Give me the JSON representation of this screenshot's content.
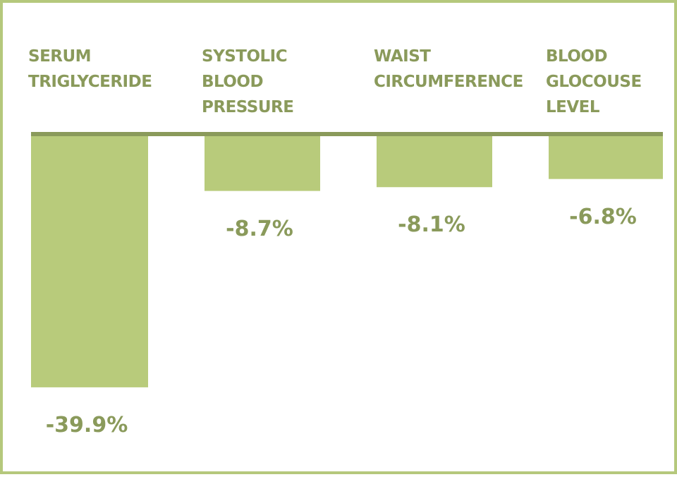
{
  "chart_data": {
    "type": "bar",
    "categories": [
      "SERUM TRIGLYCERIDE",
      "SYSTOLIC BLOOD PRESSURE",
      "WAIST CIRCUMFERENCE",
      "BLOOD GLOCOUSE LEVEL"
    ],
    "values": [
      -39.9,
      -8.7,
      -8.1,
      -6.8
    ],
    "value_labels": [
      "-39.9%",
      "-8.7%",
      "-8.1%",
      "-6.8%"
    ],
    "color": "#b8cb7b"
  }
}
